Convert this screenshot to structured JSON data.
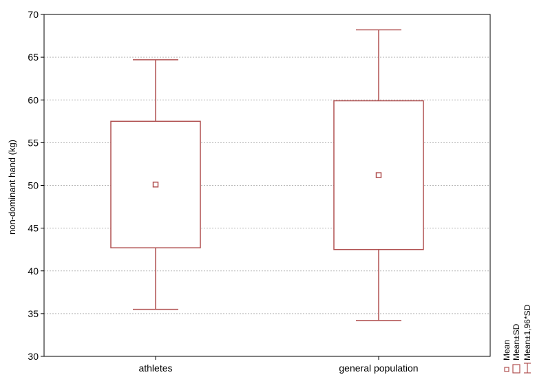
{
  "chart_data": {
    "type": "box",
    "title": "",
    "xlabel": "",
    "ylabel": "non-dominant hand (kg)",
    "ylim": [
      30,
      70
    ],
    "yticks": [
      "30",
      "35",
      "40",
      "45",
      "50",
      "55",
      "60",
      "65",
      "70"
    ],
    "grid": true,
    "categories": [
      "athletes",
      "general population"
    ],
    "boxes": [
      {
        "category": "athletes",
        "mean": 50.1,
        "sd_low": 42.7,
        "sd_high": 57.5,
        "ci_low": 35.5,
        "ci_high": 64.7
      },
      {
        "category": "general population",
        "mean": 51.2,
        "sd_low": 42.5,
        "sd_high": 59.9,
        "ci_low": 34.2,
        "ci_high": 68.2
      }
    ],
    "legend": {
      "position": "bottom-right",
      "entries": [
        "Mean",
        "Mean±SD",
        "Mean±1,96*SD"
      ]
    },
    "colors": {
      "series": "#b05050",
      "grid": "#b8b8b8",
      "axis": "#000000"
    }
  }
}
